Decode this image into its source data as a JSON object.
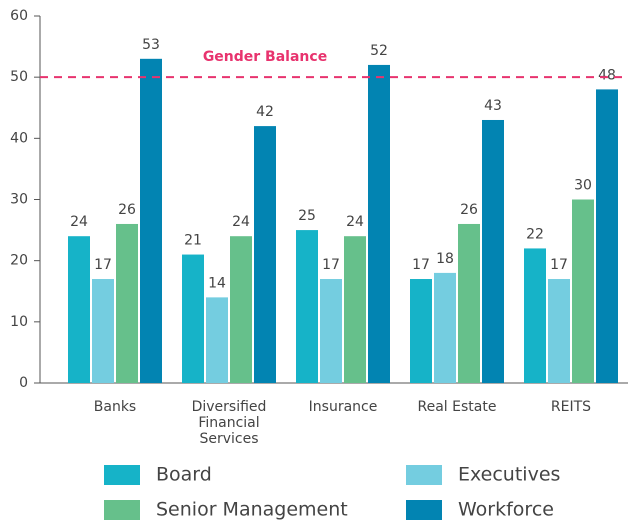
{
  "chart_data": {
    "type": "bar",
    "categories": [
      "Banks",
      "Diversified Financial Services",
      "Insurance",
      "Real Estate",
      "REITS"
    ],
    "series": [
      {
        "name": "Board",
        "color": "#16b3c8",
        "values": [
          24,
          21,
          25,
          17,
          22
        ]
      },
      {
        "name": "Executives",
        "color": "#74cde0",
        "values": [
          17,
          14,
          17,
          18,
          17
        ]
      },
      {
        "name": "Senior Management",
        "color": "#66c08b",
        "values": [
          26,
          24,
          24,
          26,
          30
        ]
      },
      {
        "name": "Workforce",
        "color": "#0284b2",
        "values": [
          53,
          42,
          52,
          43,
          48
        ]
      }
    ],
    "ylim": [
      0,
      60
    ],
    "yticks": [
      0,
      10,
      20,
      30,
      40,
      50,
      60
    ],
    "reference_line": {
      "value": 50,
      "label": "Gender Balance",
      "color": "#e8336e"
    },
    "legend": "bottom"
  }
}
